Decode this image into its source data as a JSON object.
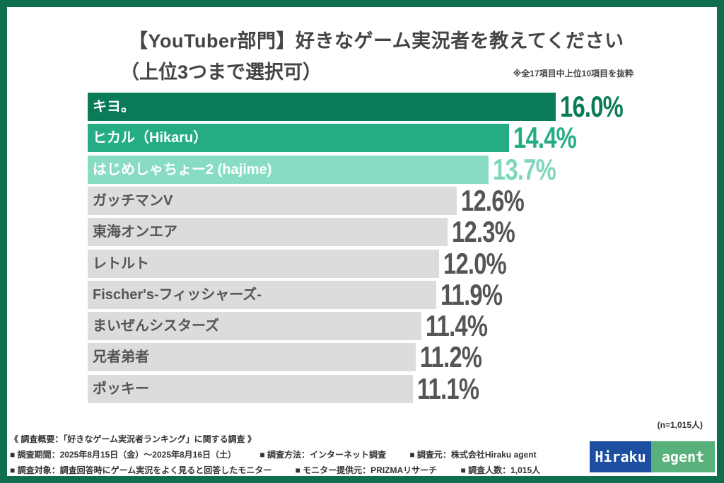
{
  "colors": {
    "frame": "#0f6e4e",
    "rank1": "#0b7a58",
    "rank2": "#24ad85",
    "rank3": "#88dcc3",
    "other": "#dcdcdc",
    "other_text": "#555555"
  },
  "chart_data": {
    "type": "bar",
    "orientation": "horizontal",
    "title": "【YouTuber部門】好きなゲーム実況者を教えてください",
    "subtitle": "（上位3つまで選択可）",
    "note": "※全17項目中上位10項目を抜粋",
    "categories": [
      "キヨ。",
      "ヒカル（Hikaru）",
      "はじめしゃちょー2 (hajime)",
      "ガッチマンV",
      "東海オンエア",
      "レトルト",
      "Fischer's-フィッシャーズ-",
      "まいぜんシスターズ",
      "兄者弟者",
      "ポッキー"
    ],
    "values": [
      16.0,
      14.4,
      13.7,
      12.6,
      12.3,
      12.0,
      11.9,
      11.4,
      11.2,
      11.1
    ],
    "labels": [
      "16.0%",
      "14.4%",
      "13.7%",
      "12.6%",
      "12.3%",
      "12.0%",
      "11.9%",
      "11.4%",
      "11.2%",
      "11.1%"
    ],
    "unit": "%"
  },
  "sample": "(n=1,015人)",
  "footer": {
    "heading": "《 調査概要：「好きなゲーム実況者ランキング」に関する調査 》",
    "line1": [
      "■ 調査期間：2025年8月15日（金）～2025年8月16日（土）",
      "■ 調査方法：インターネット調査",
      "■ 調査元：株式会社Hiraku agent"
    ],
    "line2": [
      "■ 調査対象：調査回答時にゲーム実況をよく見ると回答したモニター",
      "■ モニター提供元：PRIZMAリサーチ",
      "■ 調査人数：1,015人"
    ]
  },
  "logo": {
    "left": "Hiraku",
    "right": "agent"
  }
}
